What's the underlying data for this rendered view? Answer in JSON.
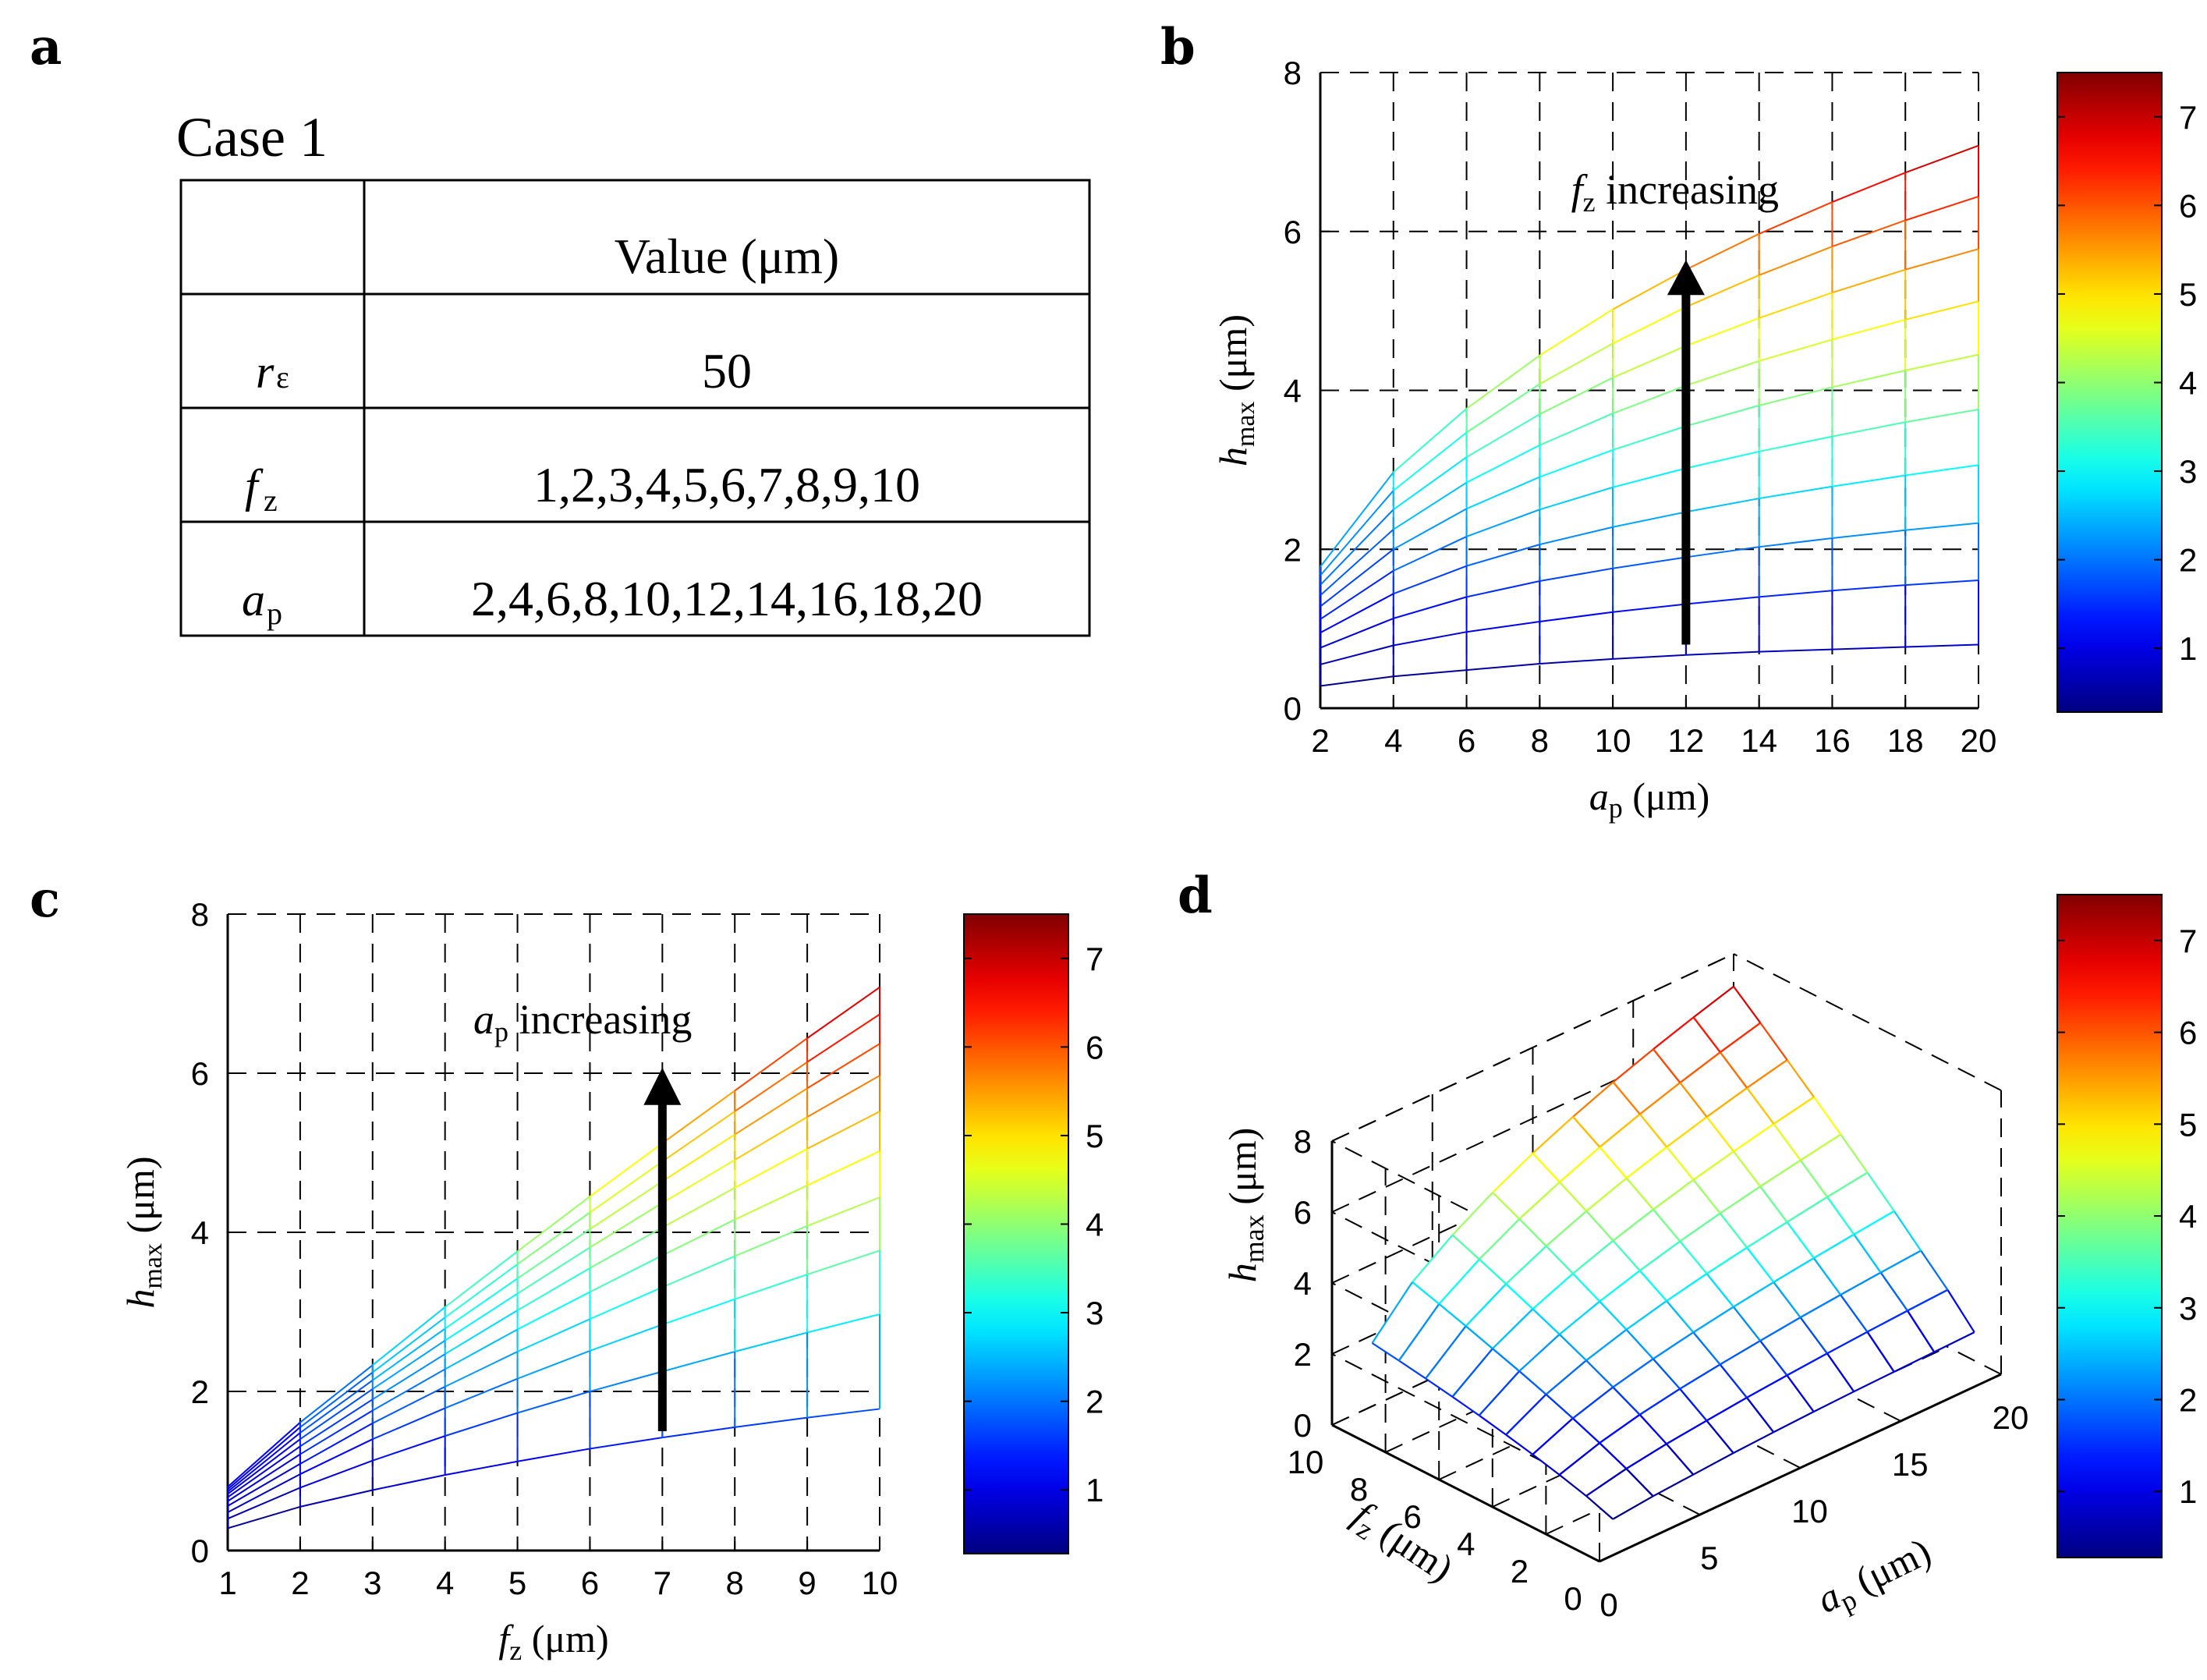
{
  "panel_labels": {
    "a": "a",
    "b": "b",
    "c": "c",
    "d": "d"
  },
  "table": {
    "title": "Case 1",
    "header": {
      "param": "",
      "value": "Value (μm)"
    },
    "rows": [
      {
        "symbol": "r",
        "sub": "ε",
        "value": "50"
      },
      {
        "symbol": "f",
        "sub": "z",
        "value": "1,2,3,4,5,6,7,8,9,10"
      },
      {
        "symbol": "a",
        "sub": "p",
        "value": "2,4,6,8,10,12,14,16,18,20"
      }
    ]
  },
  "chart_data": [
    {
      "id": "b",
      "type": "line",
      "x_values": [
        2,
        4,
        6,
        8,
        10,
        12,
        14,
        16,
        18,
        20
      ],
      "series_param": "f_z",
      "series_values": [
        1,
        2,
        3,
        4,
        5,
        6,
        7,
        8,
        9,
        10
      ],
      "series": [
        {
          "name": "f_z = 1",
          "values": [
            0.28,
            0.4,
            0.48,
            0.56,
            0.62,
            0.67,
            0.71,
            0.74,
            0.77,
            0.8
          ]
        },
        {
          "name": "f_z = 2",
          "values": [
            0.55,
            0.79,
            0.96,
            1.09,
            1.21,
            1.31,
            1.4,
            1.48,
            1.55,
            1.61
          ]
        },
        {
          "name": "f_z = 3",
          "values": [
            0.76,
            1.13,
            1.4,
            1.6,
            1.76,
            1.9,
            2.03,
            2.14,
            2.24,
            2.33
          ]
        },
        {
          "name": "f_z = 4",
          "values": [
            0.95,
            1.44,
            1.79,
            2.06,
            2.28,
            2.47,
            2.64,
            2.79,
            2.93,
            3.06
          ]
        },
        {
          "name": "f_z = 5",
          "values": [
            1.12,
            1.73,
            2.16,
            2.5,
            2.78,
            3.02,
            3.23,
            3.42,
            3.6,
            3.76
          ]
        },
        {
          "name": "f_z = 6",
          "values": [
            1.28,
            2.0,
            2.51,
            2.91,
            3.25,
            3.55,
            3.81,
            4.04,
            4.25,
            4.45
          ]
        },
        {
          "name": "f_z = 7",
          "values": [
            1.42,
            2.25,
            2.84,
            3.31,
            3.71,
            4.06,
            4.37,
            4.64,
            4.89,
            5.12
          ]
        },
        {
          "name": "f_z = 8",
          "values": [
            1.55,
            2.5,
            3.16,
            3.7,
            4.16,
            4.56,
            4.91,
            5.23,
            5.52,
            5.78
          ]
        },
        {
          "name": "f_z = 9",
          "values": [
            1.67,
            2.74,
            3.47,
            4.08,
            4.59,
            5.05,
            5.45,
            5.81,
            6.14,
            6.44
          ]
        },
        {
          "name": "f_z = 10",
          "values": [
            1.78,
            2.97,
            3.77,
            4.44,
            5.02,
            5.52,
            5.97,
            6.37,
            6.74,
            7.08
          ]
        }
      ],
      "xlabel": "a",
      "xlabel_sub": "p",
      "xlabel_unit": "(μm)",
      "ylabel": "h",
      "ylabel_sub": "max",
      "ylabel_unit": "(μm)",
      "xlim": [
        2,
        20
      ],
      "ylim": [
        0,
        8
      ],
      "xticks": [
        "2",
        "4",
        "6",
        "8",
        "10",
        "12",
        "14",
        "16",
        "18",
        "20"
      ],
      "yticks": [
        "0",
        "2",
        "4",
        "6",
        "8"
      ],
      "annotation": {
        "var": "f",
        "sub": "z",
        "text": "increasing"
      },
      "grid": true
    },
    {
      "id": "c",
      "type": "line",
      "x_values": [
        1,
        2,
        3,
        4,
        5,
        6,
        7,
        8,
        9,
        10
      ],
      "series_param": "a_p",
      "series_values": [
        2,
        4,
        6,
        8,
        10,
        12,
        14,
        16,
        18,
        20
      ],
      "series": [
        {
          "name": "a_p = 2",
          "values": [
            0.28,
            0.55,
            0.76,
            0.95,
            1.12,
            1.28,
            1.42,
            1.55,
            1.67,
            1.78
          ]
        },
        {
          "name": "a_p = 4",
          "values": [
            0.4,
            0.79,
            1.13,
            1.44,
            1.73,
            2.0,
            2.25,
            2.5,
            2.74,
            2.97
          ]
        },
        {
          "name": "a_p = 6",
          "values": [
            0.48,
            0.96,
            1.4,
            1.79,
            2.16,
            2.51,
            2.84,
            3.16,
            3.47,
            3.77
          ]
        },
        {
          "name": "a_p = 8",
          "values": [
            0.56,
            1.09,
            1.6,
            2.06,
            2.5,
            2.91,
            3.31,
            3.7,
            4.08,
            4.44
          ]
        },
        {
          "name": "a_p = 10",
          "values": [
            0.62,
            1.21,
            1.76,
            2.28,
            2.78,
            3.25,
            3.71,
            4.16,
            4.59,
            5.02
          ]
        },
        {
          "name": "a_p = 12",
          "values": [
            0.67,
            1.31,
            1.9,
            2.47,
            3.02,
            3.55,
            4.06,
            4.56,
            5.05,
            5.52
          ]
        },
        {
          "name": "a_p = 14",
          "values": [
            0.71,
            1.4,
            2.03,
            2.64,
            3.23,
            3.81,
            4.37,
            4.91,
            5.45,
            5.97
          ]
        },
        {
          "name": "a_p = 16",
          "values": [
            0.74,
            1.48,
            2.14,
            2.79,
            3.42,
            4.04,
            4.64,
            5.23,
            5.81,
            6.37
          ]
        },
        {
          "name": "a_p = 18",
          "values": [
            0.77,
            1.55,
            2.24,
            2.93,
            3.6,
            4.25,
            4.89,
            5.52,
            6.14,
            6.74
          ]
        },
        {
          "name": "a_p = 20",
          "values": [
            0.8,
            1.61,
            2.33,
            3.06,
            3.76,
            4.45,
            5.12,
            5.78,
            6.44,
            7.08
          ]
        }
      ],
      "xlabel": "f",
      "xlabel_sub": "z",
      "xlabel_unit": "(μm)",
      "ylabel": "h",
      "ylabel_sub": "max",
      "ylabel_unit": "(μm)",
      "xlim": [
        1,
        10
      ],
      "ylim": [
        0,
        8
      ],
      "xticks": [
        "1",
        "2",
        "3",
        "4",
        "5",
        "6",
        "7",
        "8",
        "9",
        "10"
      ],
      "yticks": [
        "0",
        "2",
        "4",
        "6",
        "8"
      ],
      "annotation": {
        "var": "a",
        "sub": "p",
        "text": "increasing"
      },
      "grid": true
    },
    {
      "id": "d",
      "type": "surface",
      "ap_values": [
        2,
        4,
        6,
        8,
        10,
        12,
        14,
        16,
        18,
        20
      ],
      "fz_values": [
        1,
        2,
        3,
        4,
        5,
        6,
        7,
        8,
        9,
        10
      ],
      "surface_source": "same h_max grid as panel b (rows = f_z, columns = a_p)",
      "xlabel": "a",
      "xlabel_sub": "p",
      "xlabel_unit": "(μm)",
      "ylabel": "f",
      "ylabel_sub": "z",
      "ylabel_unit": "(μm)",
      "zlabel": "h",
      "zlabel_sub": "max",
      "zlabel_unit": "(μm)",
      "ap_ticks": [
        "0",
        "5",
        "10",
        "15",
        "20"
      ],
      "fz_ticks": [
        "0",
        "2",
        "4",
        "6",
        "8",
        "10"
      ],
      "zticks": [
        "0",
        "2",
        "4",
        "6",
        "8"
      ],
      "ap_range": [
        0,
        20
      ],
      "fz_range": [
        0,
        10
      ],
      "zlim": [
        0,
        8
      ]
    }
  ],
  "colorbars": {
    "range": [
      0.28,
      7.5
    ],
    "ticks": [
      "1",
      "2",
      "3",
      "4",
      "5",
      "6",
      "7"
    ],
    "colormap": "jet"
  }
}
